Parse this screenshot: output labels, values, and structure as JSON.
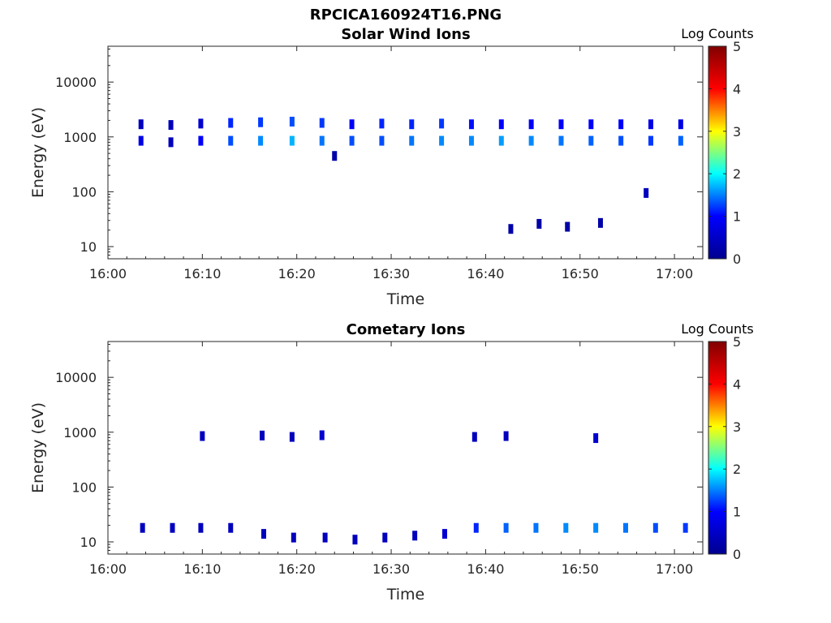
{
  "figure": {
    "title": "RPCICA160924T16.PNG"
  },
  "panels": [
    {
      "title": "Solar Wind Ions",
      "ylabel": "Energy (eV)",
      "xlabel": "Time",
      "colorbar_label": "Log Counts"
    },
    {
      "title": "Cometary Ions",
      "ylabel": "Energy (eV)",
      "xlabel": "Time",
      "colorbar_label": "Log Counts"
    }
  ],
  "colorbar": {
    "ticks": [
      "0",
      "1",
      "2",
      "3",
      "4",
      "5"
    ],
    "colormap": "jet",
    "colors": [
      "#00008f",
      "#0000ff",
      "#00ffff",
      "#ffff00",
      "#ff0000",
      "#800000"
    ]
  },
  "chart_data": [
    {
      "type": "heatmap",
      "title": "Solar Wind Ions",
      "xlabel": "Time",
      "ylabel": "Energy (eV)",
      "x_tick_labels": [
        "16:00",
        "16:10",
        "16:20",
        "16:30",
        "16:40",
        "16:50",
        "17:00"
      ],
      "xlim": [
        "16:00",
        "17:03"
      ],
      "yscale": "log",
      "ylim": [
        6,
        45000
      ],
      "y_ticks": [
        10,
        100,
        1000,
        10000
      ],
      "y_tick_labels": [
        "10",
        "100",
        "1000",
        "10000"
      ],
      "colorbar_label": "Log Counts",
      "clim": [
        0,
        5
      ],
      "points": [
        {
          "t": "16:03:30",
          "e": 1700,
          "v": 0.3
        },
        {
          "t": "16:03:30",
          "e": 850,
          "v": 0.5
        },
        {
          "t": "16:06:40",
          "e": 1650,
          "v": 0.3
        },
        {
          "t": "16:06:40",
          "e": 800,
          "v": 0.3
        },
        {
          "t": "16:09:50",
          "e": 1750,
          "v": 0.4
        },
        {
          "t": "16:09:50",
          "e": 850,
          "v": 0.6
        },
        {
          "t": "16:13:00",
          "e": 1800,
          "v": 0.8
        },
        {
          "t": "16:13:00",
          "e": 850,
          "v": 1.0
        },
        {
          "t": "16:16:10",
          "e": 1850,
          "v": 0.9
        },
        {
          "t": "16:16:10",
          "e": 850,
          "v": 1.3
        },
        {
          "t": "16:19:30",
          "e": 1900,
          "v": 1.0
        },
        {
          "t": "16:19:30",
          "e": 850,
          "v": 1.5
        },
        {
          "t": "16:22:40",
          "e": 1800,
          "v": 0.9
        },
        {
          "t": "16:22:40",
          "e": 850,
          "v": 1.2
        },
        {
          "t": "16:24:00",
          "e": 450,
          "v": 0.2
        },
        {
          "t": "16:25:50",
          "e": 1700,
          "v": 0.6
        },
        {
          "t": "16:25:50",
          "e": 850,
          "v": 1.0
        },
        {
          "t": "16:29:00",
          "e": 1750,
          "v": 0.8
        },
        {
          "t": "16:29:00",
          "e": 850,
          "v": 1.0
        },
        {
          "t": "16:32:10",
          "e": 1700,
          "v": 0.8
        },
        {
          "t": "16:32:10",
          "e": 850,
          "v": 1.2
        },
        {
          "t": "16:35:20",
          "e": 1750,
          "v": 0.9
        },
        {
          "t": "16:35:20",
          "e": 850,
          "v": 1.3
        },
        {
          "t": "16:38:30",
          "e": 1700,
          "v": 0.7
        },
        {
          "t": "16:38:30",
          "e": 850,
          "v": 1.3
        },
        {
          "t": "16:41:40",
          "e": 1700,
          "v": 0.6
        },
        {
          "t": "16:41:40",
          "e": 850,
          "v": 1.4
        },
        {
          "t": "16:44:50",
          "e": 1700,
          "v": 0.6
        },
        {
          "t": "16:44:50",
          "e": 850,
          "v": 1.3
        },
        {
          "t": "16:48:00",
          "e": 1700,
          "v": 0.6
        },
        {
          "t": "16:48:00",
          "e": 850,
          "v": 1.2
        },
        {
          "t": "16:51:10",
          "e": 1700,
          "v": 0.6
        },
        {
          "t": "16:51:10",
          "e": 850,
          "v": 1.1
        },
        {
          "t": "16:54:20",
          "e": 1700,
          "v": 0.6
        },
        {
          "t": "16:54:20",
          "e": 850,
          "v": 1.0
        },
        {
          "t": "16:57:30",
          "e": 1700,
          "v": 0.5
        },
        {
          "t": "16:57:30",
          "e": 850,
          "v": 0.9
        },
        {
          "t": "17:00:40",
          "e": 1700,
          "v": 0.5
        },
        {
          "t": "17:00:40",
          "e": 850,
          "v": 1.1
        },
        {
          "t": "16:42:40",
          "e": 21,
          "v": 0.2
        },
        {
          "t": "16:45:40",
          "e": 26,
          "v": 0.2
        },
        {
          "t": "16:48:40",
          "e": 23,
          "v": 0.2
        },
        {
          "t": "16:52:10",
          "e": 27,
          "v": 0.2
        },
        {
          "t": "16:57:00",
          "e": 95,
          "v": 0.3
        }
      ]
    },
    {
      "type": "heatmap",
      "title": "Cometary Ions",
      "xlabel": "Time",
      "ylabel": "Energy (eV)",
      "x_tick_labels": [
        "16:00",
        "16:10",
        "16:20",
        "16:30",
        "16:40",
        "16:50",
        "17:00"
      ],
      "xlim": [
        "16:00",
        "17:03"
      ],
      "yscale": "log",
      "ylim": [
        6,
        45000
      ],
      "y_ticks": [
        10,
        100,
        1000,
        10000
      ],
      "y_tick_labels": [
        "10",
        "100",
        "1000",
        "10000"
      ],
      "colorbar_label": "Log Counts",
      "clim": [
        0,
        5
      ],
      "points": [
        {
          "t": "16:10:00",
          "e": 850,
          "v": 0.3
        },
        {
          "t": "16:16:20",
          "e": 870,
          "v": 0.3
        },
        {
          "t": "16:19:30",
          "e": 820,
          "v": 0.3
        },
        {
          "t": "16:22:40",
          "e": 880,
          "v": 0.4
        },
        {
          "t": "16:38:50",
          "e": 820,
          "v": 0.3
        },
        {
          "t": "16:42:10",
          "e": 850,
          "v": 0.3
        },
        {
          "t": "16:51:40",
          "e": 780,
          "v": 0.4
        },
        {
          "t": "16:03:40",
          "e": 18,
          "v": 0.3
        },
        {
          "t": "16:06:50",
          "e": 18,
          "v": 0.3
        },
        {
          "t": "16:09:50",
          "e": 18,
          "v": 0.3
        },
        {
          "t": "16:13:00",
          "e": 18,
          "v": 0.3
        },
        {
          "t": "16:16:30",
          "e": 14,
          "v": 0.3
        },
        {
          "t": "16:19:40",
          "e": 12,
          "v": 0.3
        },
        {
          "t": "16:23:00",
          "e": 12,
          "v": 0.3
        },
        {
          "t": "16:26:10",
          "e": 11,
          "v": 0.3
        },
        {
          "t": "16:29:20",
          "e": 12,
          "v": 0.3
        },
        {
          "t": "16:32:30",
          "e": 13,
          "v": 0.3
        },
        {
          "t": "16:35:40",
          "e": 14,
          "v": 0.4
        },
        {
          "t": "16:39:00",
          "e": 18,
          "v": 0.8
        },
        {
          "t": "16:42:10",
          "e": 18,
          "v": 1.1
        },
        {
          "t": "16:45:20",
          "e": 18,
          "v": 1.2
        },
        {
          "t": "16:48:30",
          "e": 18,
          "v": 1.3
        },
        {
          "t": "16:51:40",
          "e": 18,
          "v": 1.3
        },
        {
          "t": "16:54:50",
          "e": 18,
          "v": 1.2
        },
        {
          "t": "16:58:00",
          "e": 18,
          "v": 1.0
        },
        {
          "t": "17:01:10",
          "e": 18,
          "v": 0.9
        }
      ]
    }
  ]
}
